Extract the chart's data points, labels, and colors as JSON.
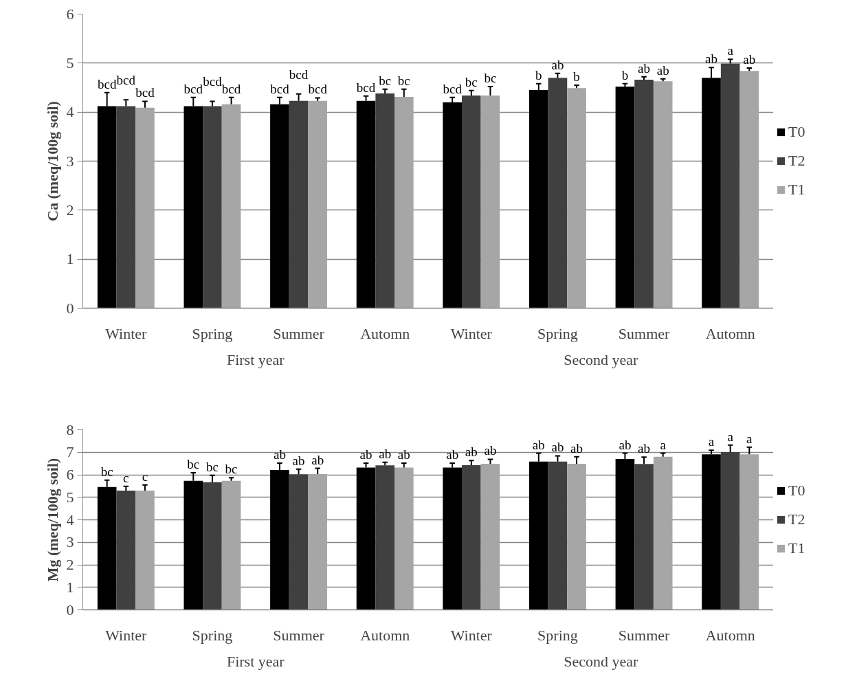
{
  "chart_data": [
    {
      "type": "bar",
      "ylabel": "Ca (meq/100g soil)",
      "categories": [
        "Winter",
        "Spring",
        "Summer",
        "Automn",
        "Winter",
        "Spring",
        "Summer",
        "Automn"
      ],
      "annotations": [
        "First year",
        "Second year"
      ],
      "ylim": [
        0,
        6
      ],
      "yticks": [
        0,
        1,
        2,
        3,
        4,
        5,
        6
      ],
      "grid": "y",
      "legend": "right",
      "series": [
        {
          "name": "T0",
          "color": "#000000",
          "values": [
            4.12,
            4.12,
            4.16,
            4.23,
            4.2,
            4.45,
            4.52,
            4.7
          ],
          "errors": [
            0.28,
            0.18,
            0.14,
            0.1,
            0.1,
            0.13,
            0.06,
            0.21
          ],
          "value_labels": [
            "bcd",
            "bcd",
            "bcd",
            "bcd",
            "bcd",
            "b",
            "b",
            "ab"
          ]
        },
        {
          "name": "T2",
          "color": "#404040",
          "values": [
            4.12,
            4.12,
            4.23,
            4.38,
            4.34,
            4.7,
            4.66,
            4.99
          ],
          "errors": [
            0.13,
            0.1,
            0.14,
            0.09,
            0.1,
            0.09,
            0.06,
            0.09
          ],
          "value_labels": [
            "bcd",
            "bcd",
            "bcd",
            "bc",
            "bc",
            "ab",
            "ab",
            "a"
          ]
        },
        {
          "name": "T1",
          "color": "#a6a6a6",
          "values": [
            4.09,
            4.16,
            4.23,
            4.31,
            4.34,
            4.49,
            4.63,
            4.84
          ],
          "errors": [
            0.13,
            0.14,
            0.06,
            0.16,
            0.18,
            0.06,
            0.05,
            0.06
          ],
          "value_labels": [
            "bcd",
            "bcd",
            "bcd",
            "bc",
            "bc",
            "b",
            "ab",
            "ab"
          ]
        }
      ]
    },
    {
      "type": "bar",
      "ylabel": "Mg (meq/100g soil)",
      "categories": [
        "Winter",
        "Spring",
        "Summer",
        "Automn",
        "Winter",
        "Spring",
        "Summer",
        "Automn"
      ],
      "annotations": [
        "First year",
        "Second year"
      ],
      "ylim": [
        0,
        8
      ],
      "yticks": [
        0,
        1,
        2,
        3,
        4,
        5,
        6,
        7,
        8
      ],
      "grid": "y",
      "legend": "right",
      "series": [
        {
          "name": "T0",
          "color": "#000000",
          "values": [
            5.46,
            5.73,
            6.21,
            6.32,
            6.32,
            6.59,
            6.7,
            6.91
          ],
          "errors": [
            0.3,
            0.36,
            0.31,
            0.2,
            0.2,
            0.37,
            0.26,
            0.18
          ],
          "value_labels": [
            "bc",
            "bc",
            "ab",
            "ab",
            "ab",
            "ab",
            "ab",
            "a"
          ]
        },
        {
          "name": "T2",
          "color": "#404040",
          "values": [
            5.3,
            5.67,
            6.02,
            6.42,
            6.43,
            6.59,
            6.48,
            7.01
          ],
          "errors": [
            0.19,
            0.31,
            0.23,
            0.14,
            0.2,
            0.25,
            0.31,
            0.31
          ],
          "value_labels": [
            "c",
            "bc",
            "ab",
            "ab",
            "ab",
            "ab",
            "ab",
            "a"
          ]
        },
        {
          "name": "T1",
          "color": "#a6a6a6",
          "values": [
            5.3,
            5.73,
            6.03,
            6.32,
            6.49,
            6.49,
            6.8,
            6.91
          ],
          "errors": [
            0.25,
            0.14,
            0.26,
            0.2,
            0.2,
            0.31,
            0.16,
            0.32
          ],
          "value_labels": [
            "c",
            "bc",
            "ab",
            "ab",
            "ab",
            "ab",
            "a",
            "a"
          ]
        }
      ]
    }
  ]
}
